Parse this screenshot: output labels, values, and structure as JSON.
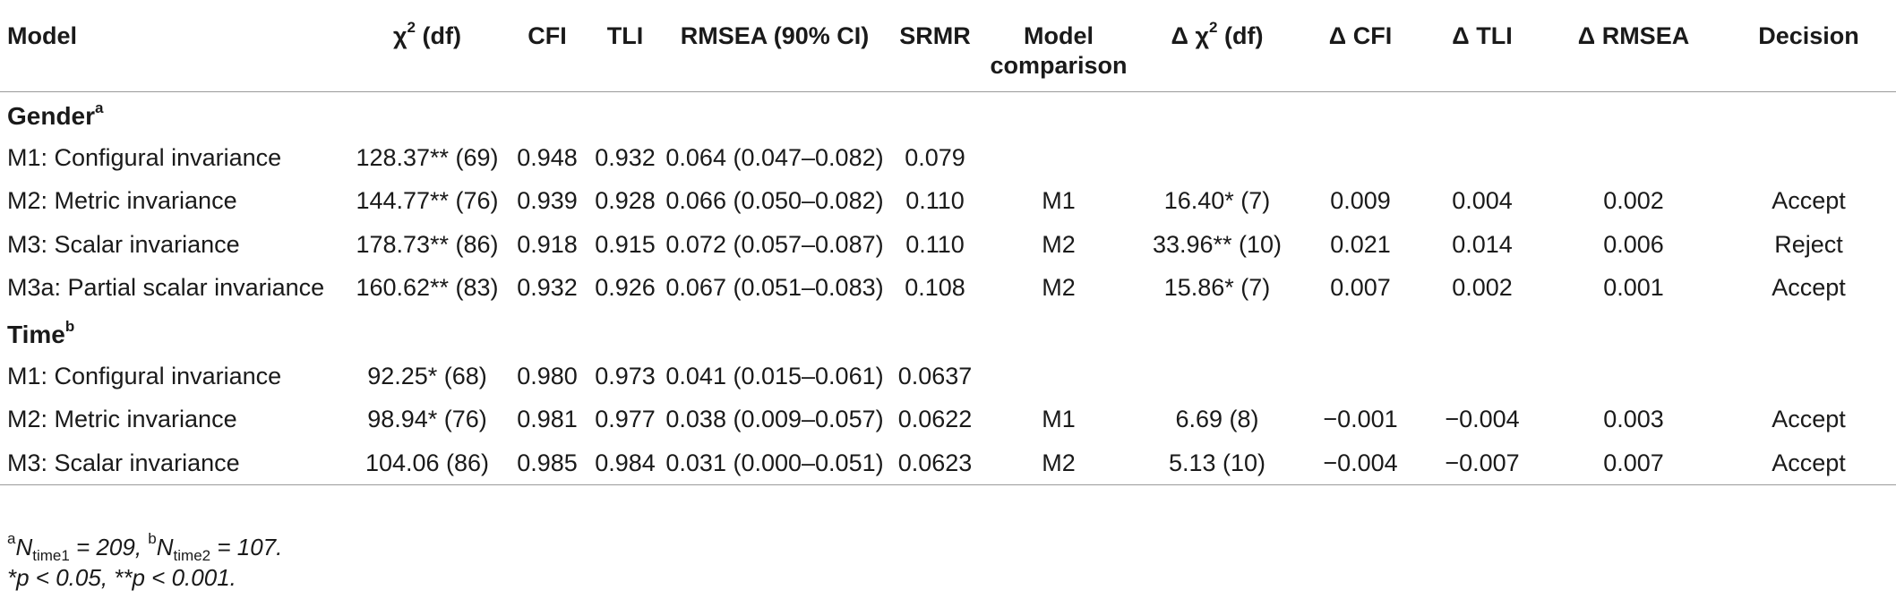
{
  "headers": {
    "model": "Model",
    "chi2_symbol": "χ",
    "chi2_sup": "2",
    "chi2_suffix": " (df)",
    "cfi": "CFI",
    "tli": "TLI",
    "rmsea": "RMSEA (90% CI)",
    "srmr": "SRMR",
    "comparison_line1": "Model",
    "comparison_line2": "comparison",
    "dchi2_prefix": "Δ χ",
    "dchi2_sup": "2",
    "dchi2_suffix": " (df)",
    "dcfi": "Δ CFI",
    "dtli": "Δ TLI",
    "drmsea": "Δ RMSEA",
    "decision": "Decision"
  },
  "groups": [
    {
      "label": "Gender",
      "sup": "a",
      "rows": [
        {
          "model": "M1: Configural invariance",
          "chi2": "128.37** (69)",
          "cfi": "0.948",
          "tli": "0.932",
          "rmsea": "0.064 (0.047–0.082)",
          "srmr": "0.079",
          "comparison": "",
          "dchi2": "",
          "dcfi": "",
          "dtli": "",
          "drmsea": "",
          "decision": ""
        },
        {
          "model": "M2: Metric invariance",
          "chi2": "144.77** (76)",
          "cfi": "0.939",
          "tli": "0.928",
          "rmsea": "0.066 (0.050–0.082)",
          "srmr": "0.110",
          "comparison": "M1",
          "dchi2": "16.40* (7)",
          "dcfi": "0.009",
          "dtli": "0.004",
          "drmsea": "0.002",
          "decision": "Accept"
        },
        {
          "model": "M3: Scalar invariance",
          "chi2": "178.73** (86)",
          "cfi": "0.918",
          "tli": "0.915",
          "rmsea": "0.072 (0.057–0.087)",
          "srmr": "0.110",
          "comparison": "M2",
          "dchi2": "33.96** (10)",
          "dcfi": "0.021",
          "dtli": "0.014",
          "drmsea": "0.006",
          "decision": "Reject"
        },
        {
          "model": "M3a: Partial scalar invariance",
          "chi2": "160.62** (83)",
          "cfi": "0.932",
          "tli": "0.926",
          "rmsea": "0.067 (0.051–0.083)",
          "srmr": "0.108",
          "comparison": "M2",
          "dchi2": "15.86* (7)",
          "dcfi": "0.007",
          "dtli": "0.002",
          "drmsea": "0.001",
          "decision": "Accept"
        }
      ]
    },
    {
      "label": "Time",
      "sup": "b",
      "rows": [
        {
          "model": "M1: Configural invariance",
          "chi2": "92.25* (68)",
          "cfi": "0.980",
          "tli": "0.973",
          "rmsea": "0.041 (0.015–0.061)",
          "srmr": "0.0637",
          "comparison": "",
          "dchi2": "",
          "dcfi": "",
          "dtli": "",
          "drmsea": "",
          "decision": ""
        },
        {
          "model": "M2: Metric invariance",
          "chi2": "98.94* (76)",
          "cfi": "0.981",
          "tli": "0.977",
          "rmsea": "0.038 (0.009–0.057)",
          "srmr": "0.0622",
          "comparison": "M1",
          "dchi2": "6.69 (8)",
          "dcfi": "−0.001",
          "dtli": "−0.004",
          "drmsea": "0.003",
          "decision": "Accept"
        },
        {
          "model": "M3: Scalar invariance",
          "chi2": "104.06 (86)",
          "cfi": "0.985",
          "tli": "0.984",
          "rmsea": "0.031 (0.000–0.051)",
          "srmr": "0.0623",
          "comparison": "M2",
          "dchi2": "5.13 (10)",
          "dcfi": "−0.004",
          "dtli": "−0.007",
          "drmsea": "0.007",
          "decision": "Accept"
        }
      ]
    }
  ],
  "notes": {
    "a_sup": "a",
    "a_n": "N",
    "a_sub": "time1",
    "a_val": " = 209, ",
    "b_sup": "b",
    "b_n": "N",
    "b_sub": "time2",
    "b_val": " = 107.",
    "line2": "*p < 0.05, **p < 0.001."
  }
}
